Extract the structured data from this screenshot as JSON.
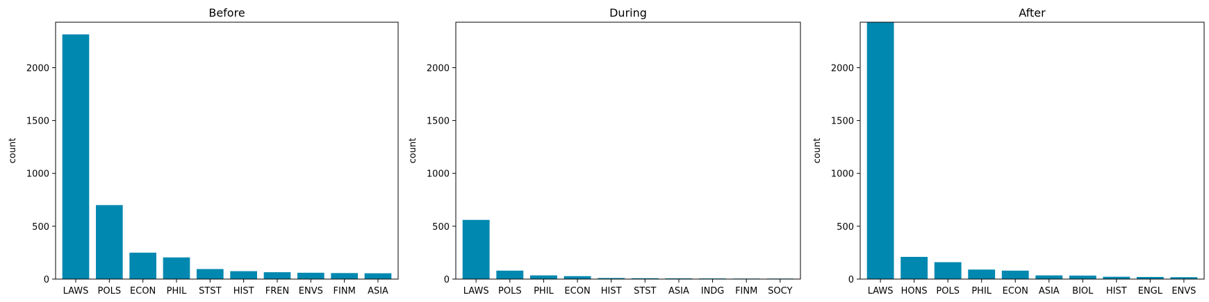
{
  "chart_data": [
    {
      "type": "bar",
      "title": "Before",
      "xlabel": "",
      "ylabel": "count",
      "color": "#0088b0",
      "ylim": [
        0,
        2430
      ],
      "yticks": [
        0,
        500,
        1000,
        1500,
        2000
      ],
      "categories": [
        "LAWS",
        "POLS",
        "ECON",
        "PHIL",
        "STST",
        "HIST",
        "FREN",
        "ENVS",
        "FINM",
        "ASIA"
      ],
      "values": [
        2315,
        700,
        250,
        205,
        95,
        75,
        65,
        60,
        57,
        55
      ]
    },
    {
      "type": "bar",
      "title": "During",
      "xlabel": "",
      "ylabel": "count",
      "color": "#0088b0",
      "ylim": [
        0,
        2430
      ],
      "yticks": [
        0,
        500,
        1000,
        1500,
        2000
      ],
      "categories": [
        "LAWS",
        "POLS",
        "PHIL",
        "ECON",
        "HIST",
        "STST",
        "ASIA",
        "INDG",
        "FINM",
        "SOCY"
      ],
      "values": [
        560,
        80,
        35,
        28,
        10,
        8,
        7,
        6,
        5,
        5
      ]
    },
    {
      "type": "bar",
      "title": "After",
      "xlabel": "",
      "ylabel": "count",
      "color": "#0088b0",
      "ylim": [
        0,
        2430
      ],
      "yticks": [
        0,
        500,
        1000,
        1500,
        2000
      ],
      "categories": [
        "LAWS",
        "HONS",
        "POLS",
        "PHIL",
        "ECON",
        "ASIA",
        "BIOL",
        "HIST",
        "ENGL",
        "ENVS"
      ],
      "values": [
        2470,
        210,
        160,
        90,
        80,
        35,
        33,
        22,
        20,
        18
      ]
    }
  ]
}
